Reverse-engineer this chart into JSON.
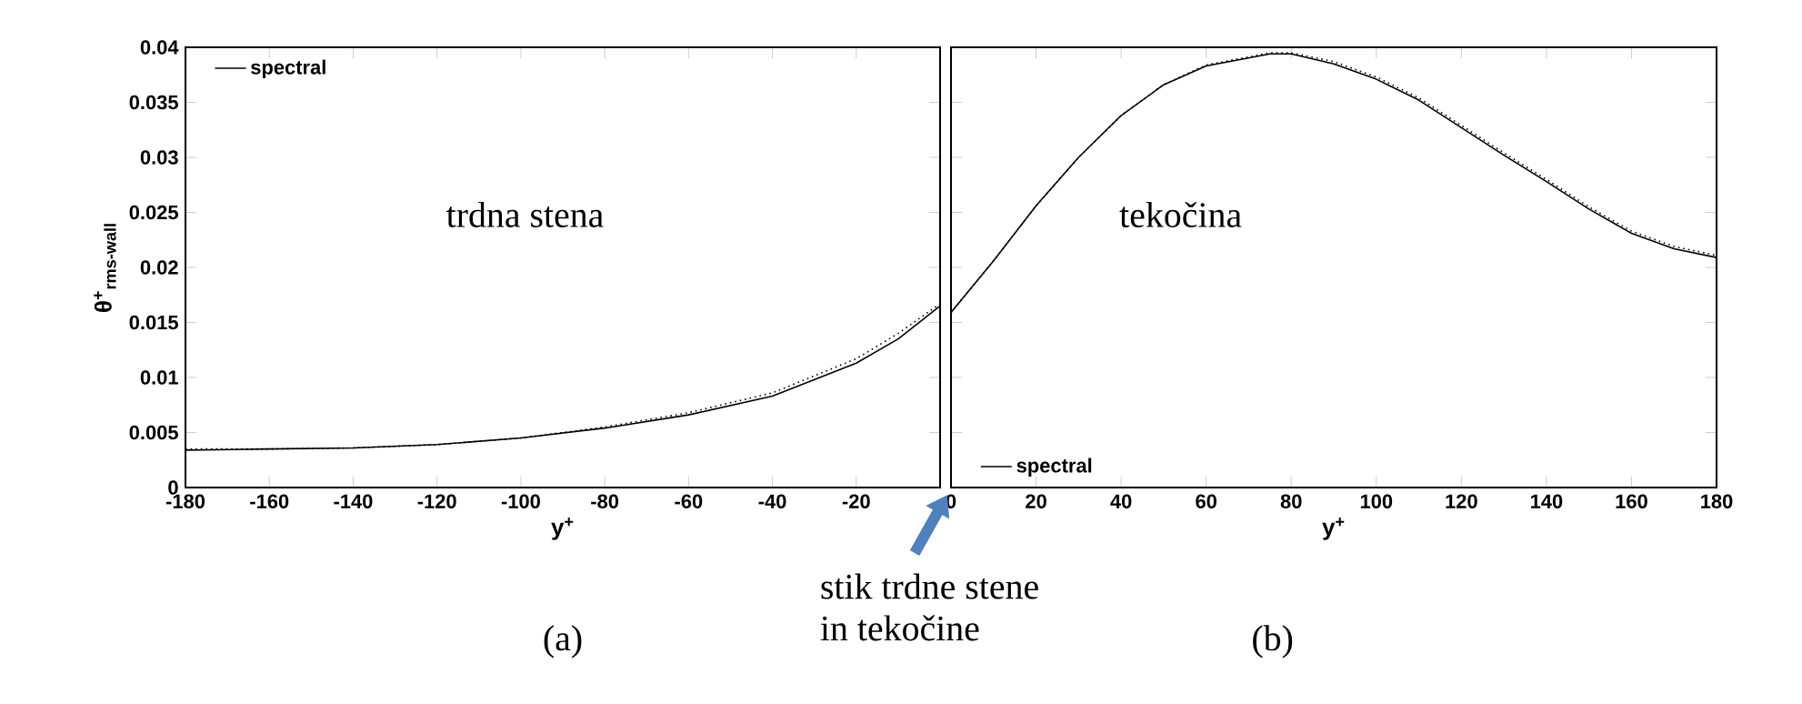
{
  "chart_data": [
    {
      "type": "line",
      "xlabel": "y$^{+}$",
      "ylabel": "θ$^{+}$$_{rms-wall}$",
      "x": [
        -180,
        -160,
        -140,
        -120,
        -100,
        -80,
        -60,
        -40,
        -20,
        -10,
        0
      ],
      "series": [
        {
          "name": "spectral",
          "color": "#000000",
          "line_style": "solid",
          "values": [
            0.0034,
            0.0035,
            0.0036,
            0.0039,
            0.0045,
            0.0054,
            0.0066,
            0.0083,
            0.0113,
            0.0135,
            0.0165
          ]
        },
        {
          "color": "#000000",
          "line_style": "dotted",
          "values": [
            0.0035,
            0.0035,
            0.0036,
            0.0039,
            0.0045,
            0.0055,
            0.0068,
            0.0086,
            0.0117,
            0.014,
            0.0167
          ]
        }
      ],
      "xlim": [
        -180,
        0
      ],
      "xticks": [
        -180,
        -160,
        -140,
        -120,
        -100,
        -80,
        -60,
        -40,
        -20
      ],
      "ylim": [
        0,
        0.04
      ],
      "yticks": [
        0,
        0.005,
        0.01,
        0.015,
        0.02,
        0.025,
        0.03,
        0.035,
        0.04
      ],
      "legend": "top left",
      "annotations": [
        "trdna stena",
        "(a)"
      ]
    },
    {
      "type": "line",
      "xlabel": "y$^{+}$",
      "x": [
        0,
        10,
        20,
        30,
        40,
        50,
        60,
        75,
        80,
        90,
        100,
        110,
        120,
        130,
        140,
        150,
        160,
        170,
        180
      ],
      "series": [
        {
          "name": "spectral",
          "color": "#000000",
          "line_style": "solid",
          "values": [
            0.0159,
            0.0206,
            0.0256,
            0.03,
            0.0338,
            0.0366,
            0.0383,
            0.0394,
            0.0394,
            0.0385,
            0.0371,
            0.0352,
            0.0327,
            0.0302,
            0.0278,
            0.0253,
            0.0231,
            0.0217,
            0.0209
          ]
        },
        {
          "color": "#000000",
          "line_style": "dotted",
          "values": [
            0.0159,
            0.0206,
            0.0256,
            0.03,
            0.0338,
            0.0366,
            0.0384,
            0.0395,
            0.0395,
            0.0387,
            0.0373,
            0.0354,
            0.0329,
            0.0304,
            0.028,
            0.0255,
            0.0233,
            0.0219,
            0.0211
          ]
        }
      ],
      "xlim": [
        0,
        180
      ],
      "xticks": [
        0,
        20,
        40,
        60,
        80,
        100,
        120,
        140,
        160,
        180
      ],
      "ylim": [
        0,
        0.04
      ],
      "yticks": [
        0,
        0.005,
        0.01,
        0.015,
        0.02,
        0.025,
        0.03,
        0.035,
        0.04
      ],
      "tick_labels": "x",
      "legend": "bottom left",
      "annotations": [
        "tekočina",
        "(b)",
        "stik trdne stene in tekočine"
      ]
    }
  ]
}
